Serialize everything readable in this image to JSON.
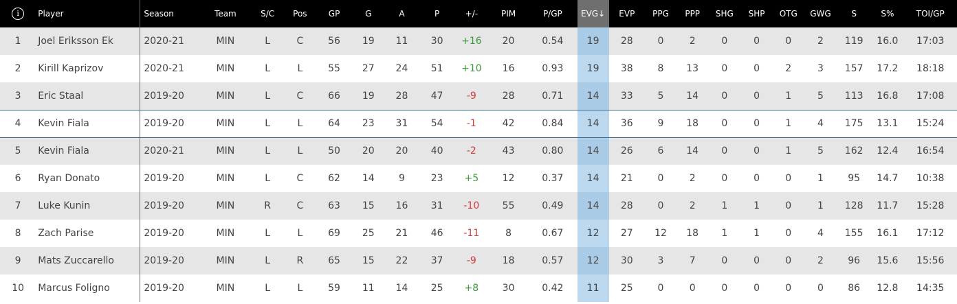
{
  "table": {
    "info_icon": "info-icon",
    "headers": {
      "rank": "",
      "player": "Player",
      "season": "Season",
      "team": "Team",
      "sc": "S/C",
      "pos": "Pos",
      "gp": "GP",
      "g": "G",
      "a": "A",
      "p": "P",
      "plusminus": "+/-",
      "pim": "PIM",
      "pgp": "P/GP",
      "evg": "EVG↓",
      "evp": "EVP",
      "ppg": "PPG",
      "ppp": "PPP",
      "shg": "SHG",
      "shp": "SHP",
      "otg": "OTG",
      "gwg": "GWG",
      "s": "S",
      "spct": "S%",
      "toigp": "TOI/GP"
    },
    "sorted_column": "evg",
    "sorted_color": "#6f6f6f",
    "highlight_color": "#bcd8ee",
    "positive_color": "#3a9a3a",
    "negative_color": "#d23b3b",
    "rows": [
      {
        "rank": "1",
        "player": "Joel Eriksson Ek",
        "season": "2020-21",
        "team": "MIN",
        "sc": "L",
        "pos": "C",
        "gp": "56",
        "g": "19",
        "a": "11",
        "p": "30",
        "plusminus": "+16",
        "pim": "20",
        "pgp": "0.54",
        "evg": "19",
        "evp": "28",
        "ppg": "0",
        "ppp": "2",
        "shg": "0",
        "shp": "0",
        "otg": "0",
        "gwg": "2",
        "s": "119",
        "spct": "16.0",
        "toigp": "17:03"
      },
      {
        "rank": "2",
        "player": "Kirill Kaprizov",
        "season": "2020-21",
        "team": "MIN",
        "sc": "L",
        "pos": "L",
        "gp": "55",
        "g": "27",
        "a": "24",
        "p": "51",
        "plusminus": "+10",
        "pim": "16",
        "pgp": "0.93",
        "evg": "19",
        "evp": "38",
        "ppg": "8",
        "ppp": "13",
        "shg": "0",
        "shp": "0",
        "otg": "2",
        "gwg": "3",
        "s": "157",
        "spct": "17.2",
        "toigp": "18:18"
      },
      {
        "rank": "3",
        "player": "Eric Staal",
        "season": "2019-20",
        "team": "MIN",
        "sc": "L",
        "pos": "C",
        "gp": "66",
        "g": "19",
        "a": "28",
        "p": "47",
        "plusminus": "-9",
        "pim": "28",
        "pgp": "0.71",
        "evg": "14",
        "evp": "33",
        "ppg": "5",
        "ppp": "14",
        "shg": "0",
        "shp": "0",
        "otg": "1",
        "gwg": "5",
        "s": "113",
        "spct": "16.8",
        "toigp": "17:08"
      },
      {
        "rank": "4",
        "player": "Kevin Fiala",
        "season": "2019-20",
        "team": "MIN",
        "sc": "L",
        "pos": "L",
        "gp": "64",
        "g": "23",
        "a": "31",
        "p": "54",
        "plusminus": "-1",
        "pim": "42",
        "pgp": "0.84",
        "evg": "14",
        "evp": "36",
        "ppg": "9",
        "ppp": "18",
        "shg": "0",
        "shp": "0",
        "otg": "1",
        "gwg": "4",
        "s": "175",
        "spct": "13.1",
        "toigp": "15:24"
      },
      {
        "rank": "5",
        "player": "Kevin Fiala",
        "season": "2020-21",
        "team": "MIN",
        "sc": "L",
        "pos": "L",
        "gp": "50",
        "g": "20",
        "a": "20",
        "p": "40",
        "plusminus": "-2",
        "pim": "43",
        "pgp": "0.80",
        "evg": "14",
        "evp": "26",
        "ppg": "6",
        "ppp": "14",
        "shg": "0",
        "shp": "0",
        "otg": "1",
        "gwg": "5",
        "s": "162",
        "spct": "12.4",
        "toigp": "16:54"
      },
      {
        "rank": "6",
        "player": "Ryan Donato",
        "season": "2019-20",
        "team": "MIN",
        "sc": "L",
        "pos": "C",
        "gp": "62",
        "g": "14",
        "a": "9",
        "p": "23",
        "plusminus": "+5",
        "pim": "12",
        "pgp": "0.37",
        "evg": "14",
        "evp": "21",
        "ppg": "0",
        "ppp": "2",
        "shg": "0",
        "shp": "0",
        "otg": "0",
        "gwg": "1",
        "s": "95",
        "spct": "14.7",
        "toigp": "10:38"
      },
      {
        "rank": "7",
        "player": "Luke Kunin",
        "season": "2019-20",
        "team": "MIN",
        "sc": "R",
        "pos": "C",
        "gp": "63",
        "g": "15",
        "a": "16",
        "p": "31",
        "plusminus": "-10",
        "pim": "55",
        "pgp": "0.49",
        "evg": "14",
        "evp": "28",
        "ppg": "0",
        "ppp": "2",
        "shg": "1",
        "shp": "1",
        "otg": "0",
        "gwg": "1",
        "s": "128",
        "spct": "11.7",
        "toigp": "15:28"
      },
      {
        "rank": "8",
        "player": "Zach Parise",
        "season": "2019-20",
        "team": "MIN",
        "sc": "L",
        "pos": "L",
        "gp": "69",
        "g": "25",
        "a": "21",
        "p": "46",
        "plusminus": "-11",
        "pim": "8",
        "pgp": "0.67",
        "evg": "12",
        "evp": "27",
        "ppg": "12",
        "ppp": "18",
        "shg": "1",
        "shp": "1",
        "otg": "0",
        "gwg": "4",
        "s": "155",
        "spct": "16.1",
        "toigp": "17:12"
      },
      {
        "rank": "9",
        "player": "Mats Zuccarello",
        "season": "2019-20",
        "team": "MIN",
        "sc": "L",
        "pos": "R",
        "gp": "65",
        "g": "15",
        "a": "22",
        "p": "37",
        "plusminus": "-9",
        "pim": "18",
        "pgp": "0.57",
        "evg": "12",
        "evp": "30",
        "ppg": "3",
        "ppp": "7",
        "shg": "0",
        "shp": "0",
        "otg": "0",
        "gwg": "2",
        "s": "96",
        "spct": "15.6",
        "toigp": "15:56"
      },
      {
        "rank": "10",
        "player": "Marcus Foligno",
        "season": "2019-20",
        "team": "MIN",
        "sc": "L",
        "pos": "L",
        "gp": "59",
        "g": "11",
        "a": "14",
        "p": "25",
        "plusminus": "+8",
        "pim": "30",
        "pgp": "0.42",
        "evg": "11",
        "evp": "25",
        "ppg": "0",
        "ppp": "0",
        "shg": "0",
        "shp": "0",
        "otg": "0",
        "gwg": "0",
        "s": "86",
        "spct": "12.8",
        "toigp": "14:35"
      }
    ]
  }
}
